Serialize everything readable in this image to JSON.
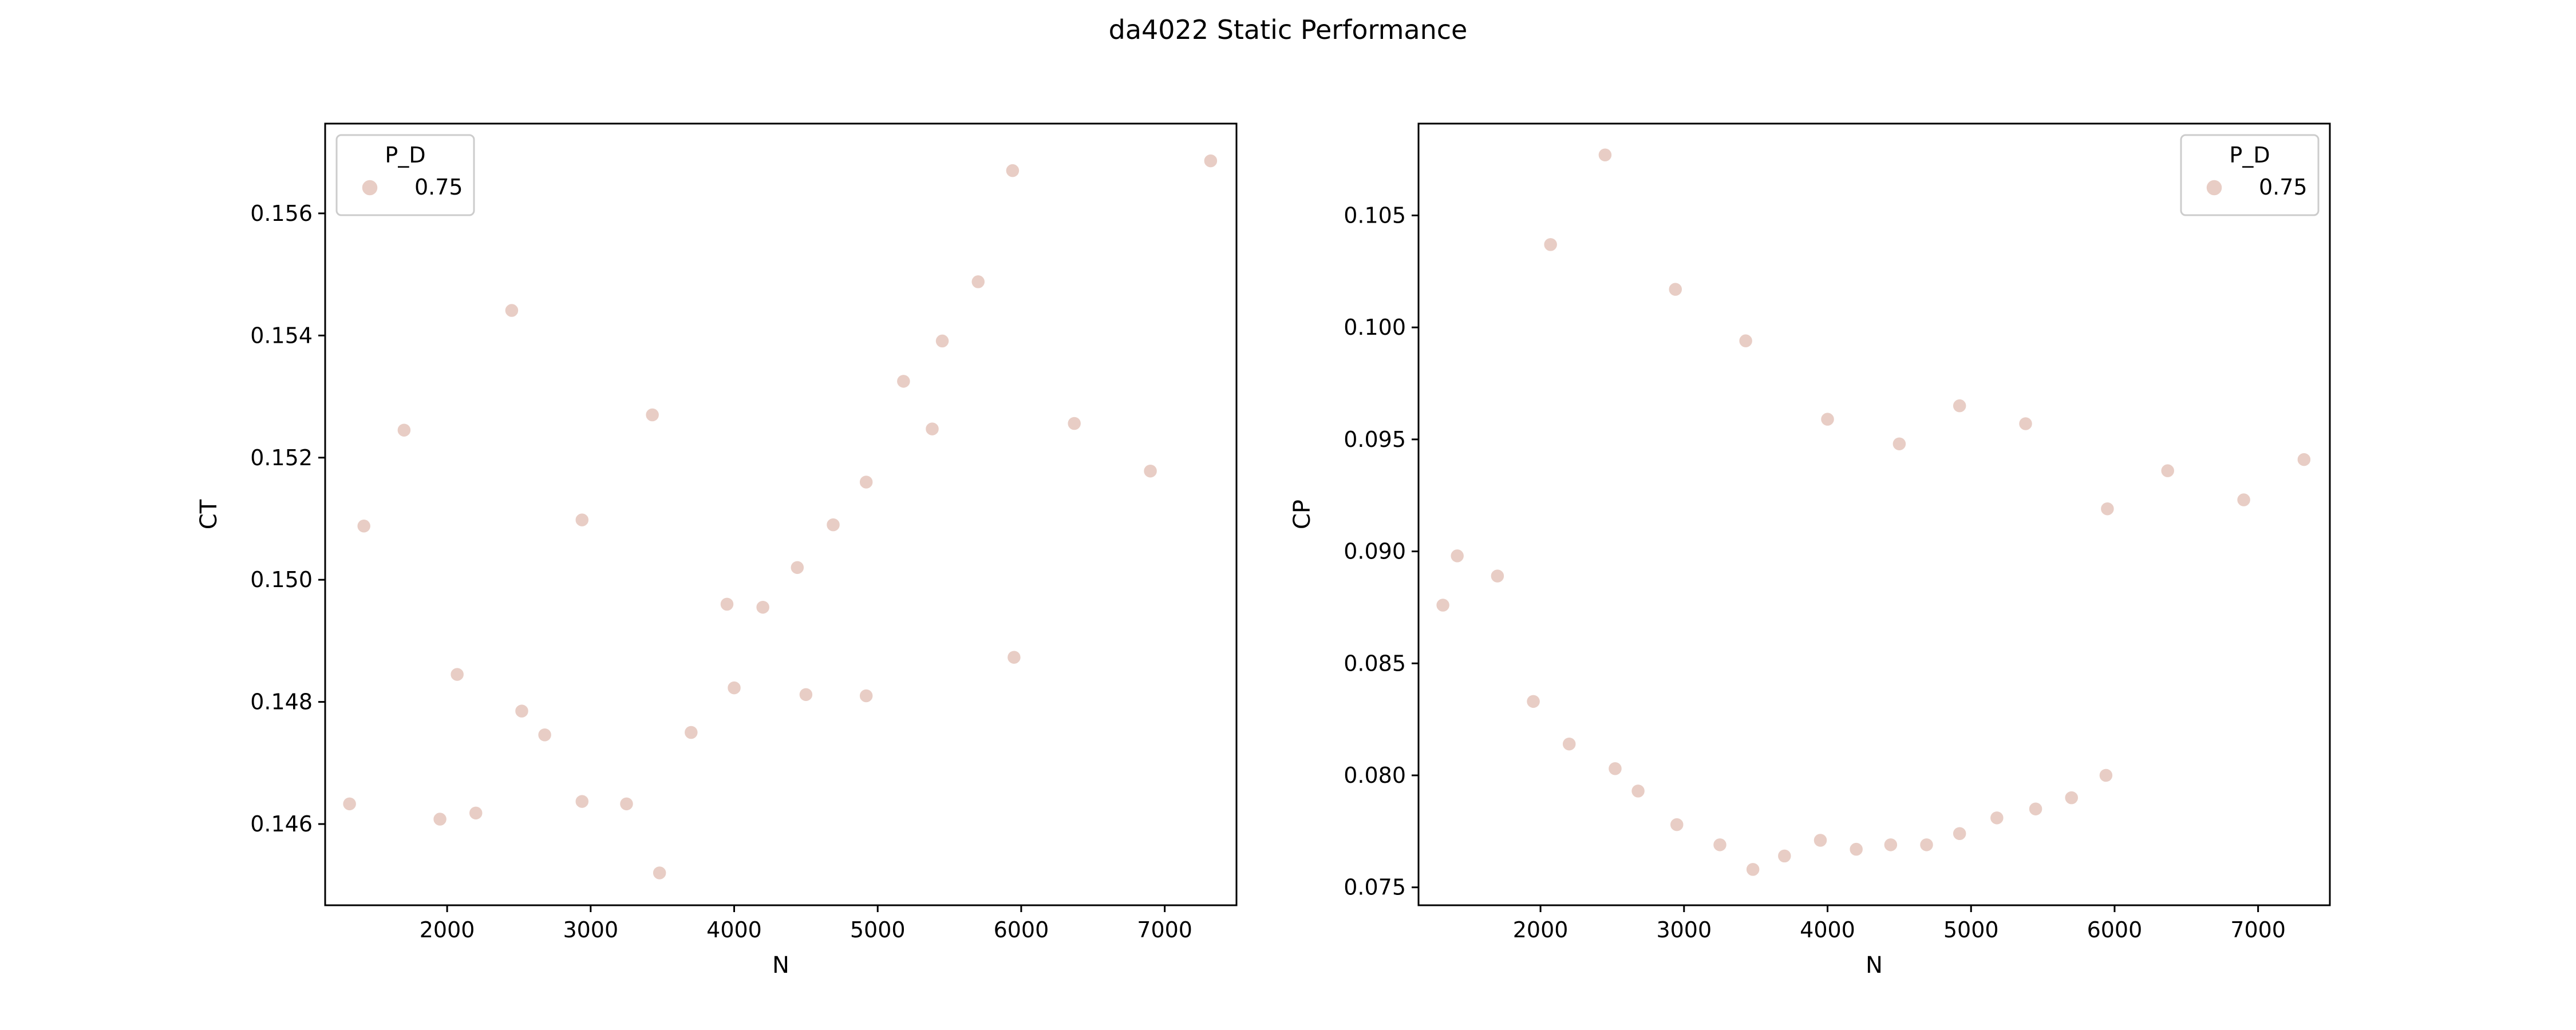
{
  "figure": {
    "title": "da4022 Static Performance"
  },
  "chart_data": [
    {
      "type": "scatter",
      "xlabel": "N",
      "ylabel": "CT",
      "xlim": [
        1150,
        7500
      ],
      "ylim": [
        0.14467,
        0.15747
      ],
      "xticks": [
        2000,
        3000,
        4000,
        5000,
        6000,
        7000
      ],
      "xtick_labels": [
        "2000",
        "3000",
        "4000",
        "5000",
        "6000",
        "7000"
      ],
      "yticks": [
        0.146,
        0.148,
        0.15,
        0.152,
        0.154,
        0.156
      ],
      "ytick_labels": [
        "0.146",
        "0.148",
        "0.150",
        "0.152",
        "0.154",
        "0.156"
      ],
      "legend": {
        "title": "P_D",
        "labels": [
          "0.75"
        ],
        "placement": "upper left"
      },
      "series": [
        {
          "name": "0.75",
          "color": "#e8cdc5",
          "x": [
            1320,
            1420,
            1700,
            1950,
            2070,
            2200,
            2450,
            2520,
            2680,
            2940,
            2940,
            3250,
            3430,
            3480,
            3700,
            3950,
            4000,
            4200,
            4440,
            4500,
            4690,
            4920,
            4920,
            5180,
            5380,
            5450,
            5700,
            5940,
            5950,
            6370,
            6900,
            7320
          ],
          "y": [
            0.14633,
            0.15088,
            0.15245,
            0.14608,
            0.14845,
            0.14618,
            0.15441,
            0.14785,
            0.14746,
            0.14637,
            0.15098,
            0.14633,
            0.1527,
            0.1452,
            0.1475,
            0.1496,
            0.14823,
            0.14955,
            0.1502,
            0.14812,
            0.1509,
            0.1481,
            0.1516,
            0.15325,
            0.15247,
            0.15391,
            0.15488,
            0.1567,
            0.14873,
            0.15256,
            0.15178,
            0.15686
          ]
        }
      ]
    },
    {
      "type": "scatter",
      "xlabel": "N",
      "ylabel": "CP",
      "xlim": [
        1150,
        7500
      ],
      "ylim": [
        0.0742,
        0.1091
      ],
      "xticks": [
        2000,
        3000,
        4000,
        5000,
        6000,
        7000
      ],
      "xtick_labels": [
        "2000",
        "3000",
        "4000",
        "5000",
        "6000",
        "7000"
      ],
      "yticks": [
        0.075,
        0.08,
        0.085,
        0.09,
        0.095,
        0.1,
        0.105
      ],
      "ytick_labels": [
        "0.075",
        "0.080",
        "0.085",
        "0.090",
        "0.095",
        "0.100",
        "0.105"
      ],
      "legend": {
        "title": "P_D",
        "labels": [
          "0.75"
        ],
        "placement": "upper right"
      },
      "series": [
        {
          "name": "0.75",
          "color": "#e8cdc5",
          "x": [
            1320,
            1420,
            1700,
            1950,
            2070,
            2200,
            2450,
            2520,
            2680,
            2940,
            2950,
            3250,
            3430,
            3480,
            3700,
            3950,
            4000,
            4200,
            4440,
            4500,
            4690,
            4920,
            4920,
            5180,
            5380,
            5450,
            5700,
            5940,
            5950,
            6370,
            6900,
            7320
          ],
          "y": [
            0.0876,
            0.0898,
            0.0889,
            0.0833,
            0.1037,
            0.0814,
            0.1077,
            0.0803,
            0.0793,
            0.1017,
            0.0778,
            0.0769,
            0.0994,
            0.0758,
            0.0764,
            0.0771,
            0.0959,
            0.0767,
            0.0769,
            0.0948,
            0.0769,
            0.0774,
            0.0965,
            0.0781,
            0.0957,
            0.0785,
            0.079,
            0.08,
            0.0919,
            0.0936,
            0.0923,
            0.0941
          ]
        }
      ]
    }
  ]
}
